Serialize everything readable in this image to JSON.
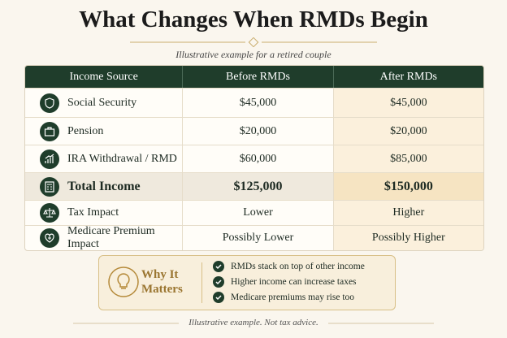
{
  "title": "What Changes When RMDs Begin",
  "subtitle": "Illustrative example for a retired couple",
  "table": {
    "columns": [
      "Income Source",
      "Before RMDs",
      "After RMDs"
    ],
    "rows": [
      [
        "Social Security",
        "$45,000",
        "$45,000"
      ],
      [
        "Pension",
        "$20,000",
        "$20,000"
      ],
      [
        "IRA Withdrawal / RMD",
        "$60,000",
        "$85,000"
      ],
      [
        "Total Income",
        "$125,000",
        "$150,000"
      ],
      [
        "Tax Impact",
        "Lower",
        "Higher"
      ],
      [
        "Medicare Premium Impact",
        "Possibly Lower",
        "Possibly Higher"
      ]
    ]
  },
  "callout": {
    "title": "Why It Matters",
    "points": [
      "RMDs stack on top of other income",
      "Higher income can increase taxes",
      "Medicare premiums may rise too"
    ]
  },
  "footer": "Illustrative example. Not tax advice."
}
